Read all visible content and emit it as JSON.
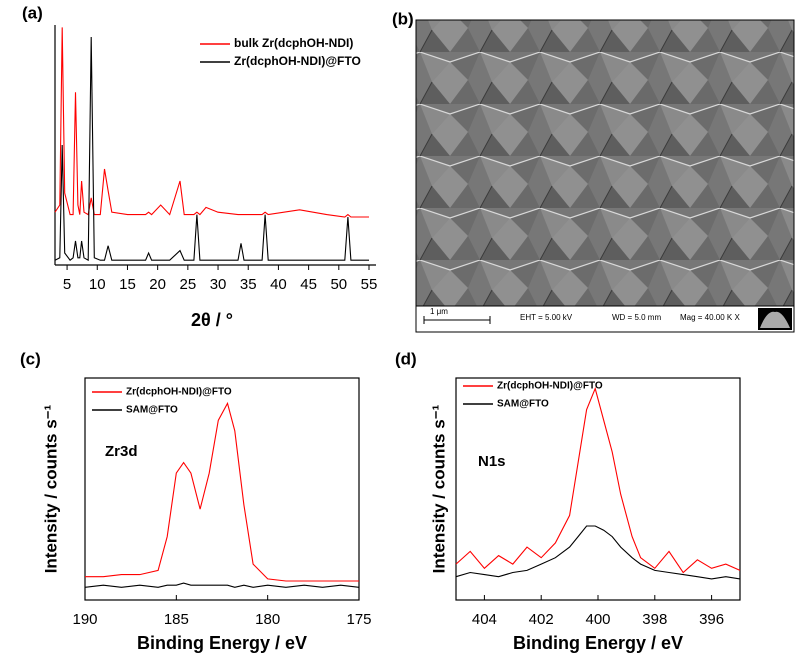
{
  "panel_b": {
    "panel_label": "(b)",
    "scale_bar": "1 μm",
    "eht": "EHT = 5.00 kV",
    "wd": "WD = 5.0 mm",
    "mag": "Mag = 40.00 K X"
  },
  "chart_data": [
    {
      "type": "line",
      "panel_label": "(a)",
      "x_label": "2θ / °",
      "legend": "upper center",
      "frame": false,
      "xlim": [
        3,
        55
      ],
      "ylim": [
        0,
        100
      ],
      "xticks": [
        5,
        10,
        15,
        20,
        25,
        30,
        35,
        40,
        45,
        50,
        55
      ],
      "x": [
        3,
        3.8,
        4.2,
        4.6,
        5.5,
        6.0,
        6.4,
        6.8,
        7.1,
        7.4,
        7.8,
        8.5,
        9.0,
        9.5,
        10.5,
        11.2,
        11.8,
        12.4,
        15,
        18,
        18.5,
        19,
        20.5,
        22,
        23.7,
        24.4,
        26,
        26.5,
        27,
        28,
        30,
        33.3,
        33.8,
        34.3,
        37.3,
        37.8,
        38.3,
        43.5,
        48,
        51,
        51.5,
        52,
        55
      ],
      "series": [
        {
          "name": "bulk Zr(dcphOH-NDI)",
          "color": "#ff0000",
          "values": [
            22,
            25,
            99,
            30,
            21,
            21,
            72,
            25,
            21,
            35,
            22,
            21,
            28,
            21,
            21,
            40,
            31,
            22,
            21,
            21,
            22,
            21,
            25,
            21,
            35,
            21,
            21,
            22,
            21,
            24,
            22,
            21,
            21,
            21,
            21,
            22,
            21,
            23,
            21,
            20,
            21,
            20,
            20
          ]
        },
        {
          "name": "Zr(dcphOH-NDI)@FTO",
          "color": "#000000",
          "values": [
            2,
            3,
            50,
            5,
            2,
            3,
            10,
            3,
            3,
            10,
            3,
            2,
            95,
            3,
            2,
            2,
            8,
            2,
            2,
            2,
            5,
            2,
            2,
            2,
            6,
            2,
            2,
            21,
            2,
            2,
            2,
            2,
            9,
            2,
            2,
            21,
            2,
            2,
            2,
            2,
            20,
            2,
            2
          ]
        }
      ]
    },
    {
      "type": "line",
      "panel_label": "(c)",
      "x_label": "Binding Energy / eV",
      "y_label": "Intensity / counts s⁻¹",
      "annotation": "Zr3d",
      "legend": "upper left",
      "frame": true,
      "xlim": [
        190,
        175
      ],
      "ylim": [
        -5,
        100
      ],
      "xticks": [
        190,
        185,
        180,
        175
      ],
      "x": [
        190,
        189,
        188,
        187,
        186,
        185.5,
        185,
        184.6,
        184.2,
        183.7,
        183.2,
        182.7,
        182.2,
        181.8,
        181.3,
        180.8,
        180,
        179,
        178,
        177,
        176,
        175
      ],
      "series": [
        {
          "name": "Zr(dcphOH-NDI)@FTO",
          "color": "#ff0000",
          "values": [
            6,
            6,
            7,
            7,
            9,
            25,
            55,
            60,
            55,
            38,
            55,
            80,
            88,
            75,
            40,
            12,
            5,
            4,
            4,
            4,
            4,
            4
          ]
        },
        {
          "name": "SAM@FTO",
          "color": "#000000",
          "values": [
            1,
            2,
            1,
            2,
            1,
            2,
            2,
            3,
            2,
            2,
            2,
            2,
            2,
            1,
            2,
            1,
            2,
            1,
            2,
            1,
            2,
            1
          ]
        }
      ]
    },
    {
      "type": "line",
      "panel_label": "(d)",
      "x_label": "Binding Energy / eV",
      "y_label": "Intensity / counts s⁻¹",
      "annotation": "N1s",
      "legend": "upper left",
      "frame": true,
      "xlim": [
        405,
        395
      ],
      "ylim": [
        -5,
        100
      ],
      "xticks": [
        404,
        402,
        400,
        398,
        396
      ],
      "x": [
        405,
        404.5,
        404,
        403.5,
        403,
        402.5,
        402,
        401.5,
        401,
        400.7,
        400.4,
        400.1,
        399.8,
        399.5,
        399.2,
        398.8,
        398.5,
        398,
        397.5,
        397,
        396.5,
        396,
        395.5,
        395
      ],
      "series": [
        {
          "name": "Zr(dcphOH-NDI)@FTO",
          "color": "#ff0000",
          "values": [
            12,
            18,
            10,
            16,
            12,
            20,
            15,
            22,
            35,
            60,
            85,
            95,
            80,
            65,
            45,
            25,
            15,
            10,
            18,
            8,
            14,
            10,
            12,
            9
          ]
        },
        {
          "name": "SAM@FTO",
          "color": "#000000",
          "values": [
            6,
            8,
            7,
            6,
            8,
            9,
            12,
            15,
            20,
            25,
            30,
            30,
            28,
            25,
            20,
            15,
            12,
            9,
            8,
            7,
            6,
            5,
            6,
            5
          ]
        }
      ]
    }
  ]
}
